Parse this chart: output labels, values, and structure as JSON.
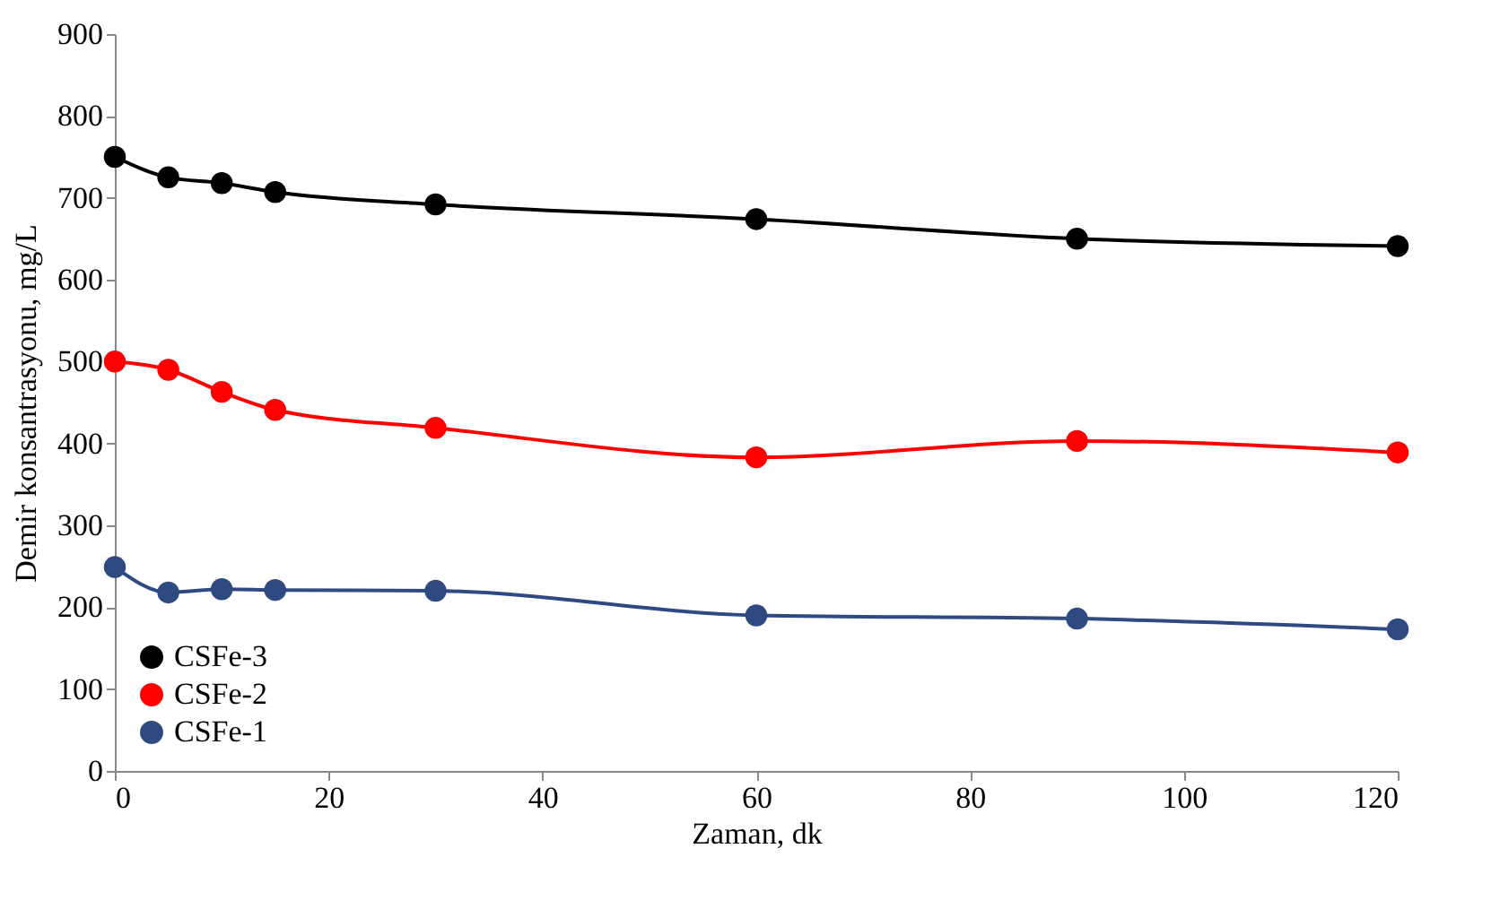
{
  "chart_data": {
    "type": "line",
    "xlabel": "Zaman, dk",
    "ylabel": "Demir konsantrasyonu,  mg/L",
    "x": [
      0,
      5,
      10,
      15,
      30,
      60,
      90,
      120
    ],
    "series": [
      {
        "name": "CSFe-3",
        "color": "#000000",
        "values": [
          750,
          725,
          718,
          707,
          692,
          674,
          650,
          641
        ]
      },
      {
        "name": "CSFe-2",
        "color": "#ff0000",
        "values": [
          500,
          490,
          463,
          441,
          419,
          383,
          403,
          389
        ]
      },
      {
        "name": "CSFe-1",
        "color": "#2e4a80",
        "values": [
          249,
          218,
          222,
          221,
          220,
          190,
          186,
          173
        ]
      }
    ],
    "xlim": [
      0,
      120
    ],
    "xticks": [
      0,
      20,
      40,
      60,
      80,
      100,
      120
    ],
    "ylim": [
      0,
      900
    ],
    "yticks": [
      0,
      100,
      200,
      300,
      400,
      500,
      600,
      700,
      800,
      900
    ],
    "legend": "bottom left",
    "marker": "circle",
    "line_style": "solid"
  }
}
